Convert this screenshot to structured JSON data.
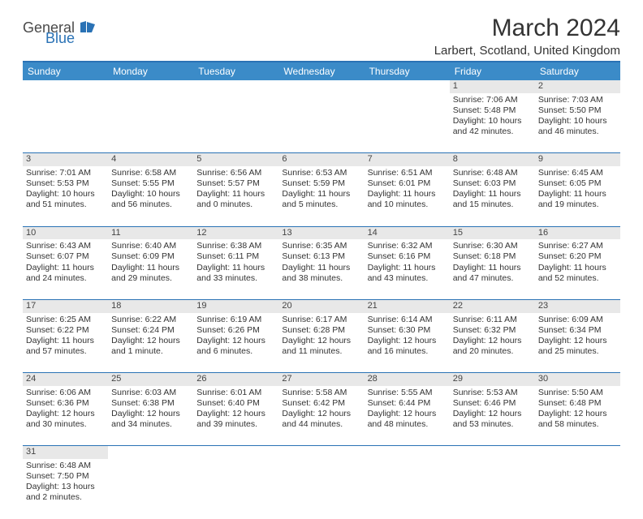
{
  "logo": {
    "general": "General",
    "blue": "Blue"
  },
  "title": "March 2024",
  "location": "Larbert, Scotland, United Kingdom",
  "colors": {
    "header_bg": "#3b8bc8",
    "accent": "#2a72b5",
    "daynum_bg": "#e8e8e8",
    "text": "#333333"
  },
  "weekdays": [
    "Sunday",
    "Monday",
    "Tuesday",
    "Wednesday",
    "Thursday",
    "Friday",
    "Saturday"
  ],
  "weeks": [
    [
      null,
      null,
      null,
      null,
      null,
      {
        "n": "1",
        "sr": "Sunrise: 7:06 AM",
        "ss": "Sunset: 5:48 PM",
        "d1": "Daylight: 10 hours",
        "d2": "and 42 minutes."
      },
      {
        "n": "2",
        "sr": "Sunrise: 7:03 AM",
        "ss": "Sunset: 5:50 PM",
        "d1": "Daylight: 10 hours",
        "d2": "and 46 minutes."
      }
    ],
    [
      {
        "n": "3",
        "sr": "Sunrise: 7:01 AM",
        "ss": "Sunset: 5:53 PM",
        "d1": "Daylight: 10 hours",
        "d2": "and 51 minutes."
      },
      {
        "n": "4",
        "sr": "Sunrise: 6:58 AM",
        "ss": "Sunset: 5:55 PM",
        "d1": "Daylight: 10 hours",
        "d2": "and 56 minutes."
      },
      {
        "n": "5",
        "sr": "Sunrise: 6:56 AM",
        "ss": "Sunset: 5:57 PM",
        "d1": "Daylight: 11 hours",
        "d2": "and 0 minutes."
      },
      {
        "n": "6",
        "sr": "Sunrise: 6:53 AM",
        "ss": "Sunset: 5:59 PM",
        "d1": "Daylight: 11 hours",
        "d2": "and 5 minutes."
      },
      {
        "n": "7",
        "sr": "Sunrise: 6:51 AM",
        "ss": "Sunset: 6:01 PM",
        "d1": "Daylight: 11 hours",
        "d2": "and 10 minutes."
      },
      {
        "n": "8",
        "sr": "Sunrise: 6:48 AM",
        "ss": "Sunset: 6:03 PM",
        "d1": "Daylight: 11 hours",
        "d2": "and 15 minutes."
      },
      {
        "n": "9",
        "sr": "Sunrise: 6:45 AM",
        "ss": "Sunset: 6:05 PM",
        "d1": "Daylight: 11 hours",
        "d2": "and 19 minutes."
      }
    ],
    [
      {
        "n": "10",
        "sr": "Sunrise: 6:43 AM",
        "ss": "Sunset: 6:07 PM",
        "d1": "Daylight: 11 hours",
        "d2": "and 24 minutes."
      },
      {
        "n": "11",
        "sr": "Sunrise: 6:40 AM",
        "ss": "Sunset: 6:09 PM",
        "d1": "Daylight: 11 hours",
        "d2": "and 29 minutes."
      },
      {
        "n": "12",
        "sr": "Sunrise: 6:38 AM",
        "ss": "Sunset: 6:11 PM",
        "d1": "Daylight: 11 hours",
        "d2": "and 33 minutes."
      },
      {
        "n": "13",
        "sr": "Sunrise: 6:35 AM",
        "ss": "Sunset: 6:13 PM",
        "d1": "Daylight: 11 hours",
        "d2": "and 38 minutes."
      },
      {
        "n": "14",
        "sr": "Sunrise: 6:32 AM",
        "ss": "Sunset: 6:16 PM",
        "d1": "Daylight: 11 hours",
        "d2": "and 43 minutes."
      },
      {
        "n": "15",
        "sr": "Sunrise: 6:30 AM",
        "ss": "Sunset: 6:18 PM",
        "d1": "Daylight: 11 hours",
        "d2": "and 47 minutes."
      },
      {
        "n": "16",
        "sr": "Sunrise: 6:27 AM",
        "ss": "Sunset: 6:20 PM",
        "d1": "Daylight: 11 hours",
        "d2": "and 52 minutes."
      }
    ],
    [
      {
        "n": "17",
        "sr": "Sunrise: 6:25 AM",
        "ss": "Sunset: 6:22 PM",
        "d1": "Daylight: 11 hours",
        "d2": "and 57 minutes."
      },
      {
        "n": "18",
        "sr": "Sunrise: 6:22 AM",
        "ss": "Sunset: 6:24 PM",
        "d1": "Daylight: 12 hours",
        "d2": "and 1 minute."
      },
      {
        "n": "19",
        "sr": "Sunrise: 6:19 AM",
        "ss": "Sunset: 6:26 PM",
        "d1": "Daylight: 12 hours",
        "d2": "and 6 minutes."
      },
      {
        "n": "20",
        "sr": "Sunrise: 6:17 AM",
        "ss": "Sunset: 6:28 PM",
        "d1": "Daylight: 12 hours",
        "d2": "and 11 minutes."
      },
      {
        "n": "21",
        "sr": "Sunrise: 6:14 AM",
        "ss": "Sunset: 6:30 PM",
        "d1": "Daylight: 12 hours",
        "d2": "and 16 minutes."
      },
      {
        "n": "22",
        "sr": "Sunrise: 6:11 AM",
        "ss": "Sunset: 6:32 PM",
        "d1": "Daylight: 12 hours",
        "d2": "and 20 minutes."
      },
      {
        "n": "23",
        "sr": "Sunrise: 6:09 AM",
        "ss": "Sunset: 6:34 PM",
        "d1": "Daylight: 12 hours",
        "d2": "and 25 minutes."
      }
    ],
    [
      {
        "n": "24",
        "sr": "Sunrise: 6:06 AM",
        "ss": "Sunset: 6:36 PM",
        "d1": "Daylight: 12 hours",
        "d2": "and 30 minutes."
      },
      {
        "n": "25",
        "sr": "Sunrise: 6:03 AM",
        "ss": "Sunset: 6:38 PM",
        "d1": "Daylight: 12 hours",
        "d2": "and 34 minutes."
      },
      {
        "n": "26",
        "sr": "Sunrise: 6:01 AM",
        "ss": "Sunset: 6:40 PM",
        "d1": "Daylight: 12 hours",
        "d2": "and 39 minutes."
      },
      {
        "n": "27",
        "sr": "Sunrise: 5:58 AM",
        "ss": "Sunset: 6:42 PM",
        "d1": "Daylight: 12 hours",
        "d2": "and 44 minutes."
      },
      {
        "n": "28",
        "sr": "Sunrise: 5:55 AM",
        "ss": "Sunset: 6:44 PM",
        "d1": "Daylight: 12 hours",
        "d2": "and 48 minutes."
      },
      {
        "n": "29",
        "sr": "Sunrise: 5:53 AM",
        "ss": "Sunset: 6:46 PM",
        "d1": "Daylight: 12 hours",
        "d2": "and 53 minutes."
      },
      {
        "n": "30",
        "sr": "Sunrise: 5:50 AM",
        "ss": "Sunset: 6:48 PM",
        "d1": "Daylight: 12 hours",
        "d2": "and 58 minutes."
      }
    ],
    [
      {
        "n": "31",
        "sr": "Sunrise: 6:48 AM",
        "ss": "Sunset: 7:50 PM",
        "d1": "Daylight: 13 hours",
        "d2": "and 2 minutes."
      },
      null,
      null,
      null,
      null,
      null,
      null
    ]
  ]
}
